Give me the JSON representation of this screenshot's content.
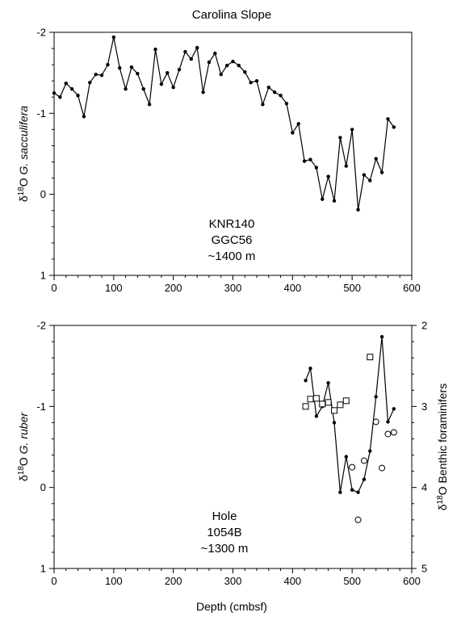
{
  "title": "Carolina Slope",
  "x_label": "Depth (cmbsf)",
  "chart_data": [
    {
      "type": "line",
      "annotation": [
        "KNR140",
        "GGC56",
        "~1400 m"
      ],
      "xlim": [
        0,
        600
      ],
      "ylim": [
        -2,
        1
      ],
      "y_inverted": true,
      "x_ticks": [
        "0",
        "100",
        "200",
        "300",
        "400",
        "500",
        "600"
      ],
      "y_ticks": [
        "-2",
        "-1",
        "0",
        "1"
      ],
      "ylabel": {
        "prefix": "δ",
        "sup": "18",
        "element": "O ",
        "taxon": "G. sacculifera"
      },
      "series": [
        {
          "marker": "dot",
          "color": "#000000",
          "x": [
            0,
            10,
            20,
            30,
            40,
            50,
            60,
            70,
            80,
            90,
            100,
            110,
            120,
            130,
            140,
            150,
            160,
            170,
            180,
            190,
            200,
            210,
            220,
            230,
            240,
            250,
            260,
            270,
            280,
            290,
            300,
            310,
            320,
            330,
            340,
            350,
            360,
            370,
            380,
            390,
            400,
            410,
            420,
            430,
            440,
            450,
            460,
            470,
            480,
            490,
            500,
            510,
            520,
            530,
            540,
            550,
            560,
            570
          ],
          "y": [
            -1.25,
            -1.2,
            -1.37,
            -1.3,
            -1.22,
            -0.96,
            -1.38,
            -1.48,
            -1.47,
            -1.6,
            -1.94,
            -1.56,
            -1.3,
            -1.57,
            -1.49,
            -1.3,
            -1.11,
            -1.79,
            -1.36,
            -1.5,
            -1.32,
            -1.54,
            -1.76,
            -1.67,
            -1.81,
            -1.26,
            -1.63,
            -1.74,
            -1.48,
            -1.59,
            -1.64,
            -1.59,
            -1.51,
            -1.38,
            -1.4,
            -1.11,
            -1.32,
            -1.26,
            -1.22,
            -1.12,
            -0.76,
            -0.87,
            -0.41,
            -0.43,
            -0.33,
            0.06,
            -0.22,
            0.08,
            -0.7,
            -0.35,
            -0.8,
            0.19,
            -0.24,
            -0.17,
            -0.44,
            -0.27,
            -0.93,
            -0.83
          ]
        }
      ]
    },
    {
      "type": "line",
      "annotation": [
        "Hole",
        "1054B",
        "~1300 m"
      ],
      "xlim": [
        0,
        600
      ],
      "ylim": [
        -2,
        1
      ],
      "y_inverted": true,
      "y2lim": [
        2,
        5
      ],
      "x_ticks": [
        "0",
        "100",
        "200",
        "300",
        "400",
        "500",
        "600"
      ],
      "y_ticks": [
        "-2",
        "-1",
        "0",
        "1"
      ],
      "y2_ticks": [
        "2",
        "3",
        "4",
        "5"
      ],
      "ylabel": {
        "prefix": "δ",
        "sup": "18",
        "element": "O ",
        "taxon": "G. ruber"
      },
      "y2label": {
        "prefix": "δ",
        "sup": "18",
        "element": "O Benthic foraminifers"
      },
      "series": [
        {
          "marker": "dot",
          "color": "#000000",
          "axis": "left",
          "x": [
            422,
            430,
            440,
            450,
            460,
            470,
            480,
            490,
            500,
            510,
            520,
            530,
            540,
            550,
            560,
            570
          ],
          "y": [
            -1.32,
            -1.47,
            -0.88,
            -1.0,
            -1.29,
            -0.8,
            0.06,
            -0.38,
            0.03,
            0.06,
            -0.1,
            -0.45,
            -1.12,
            -1.86,
            -0.81,
            -0.97
          ]
        },
        {
          "marker": "square",
          "color": "#000000",
          "axis": "right",
          "connected": false,
          "x": [
            422,
            430,
            440,
            450,
            460,
            470,
            480,
            490,
            530
          ],
          "y": [
            3.0,
            2.91,
            2.9,
            2.97,
            2.95,
            3.05,
            2.98,
            2.93,
            2.39
          ]
        },
        {
          "marker": "circle",
          "color": "#000000",
          "axis": "right",
          "connected": false,
          "x": [
            500,
            510,
            520,
            540,
            550,
            560,
            570
          ],
          "y": [
            3.75,
            4.4,
            3.67,
            3.19,
            3.76,
            3.34,
            3.32
          ]
        }
      ]
    }
  ]
}
